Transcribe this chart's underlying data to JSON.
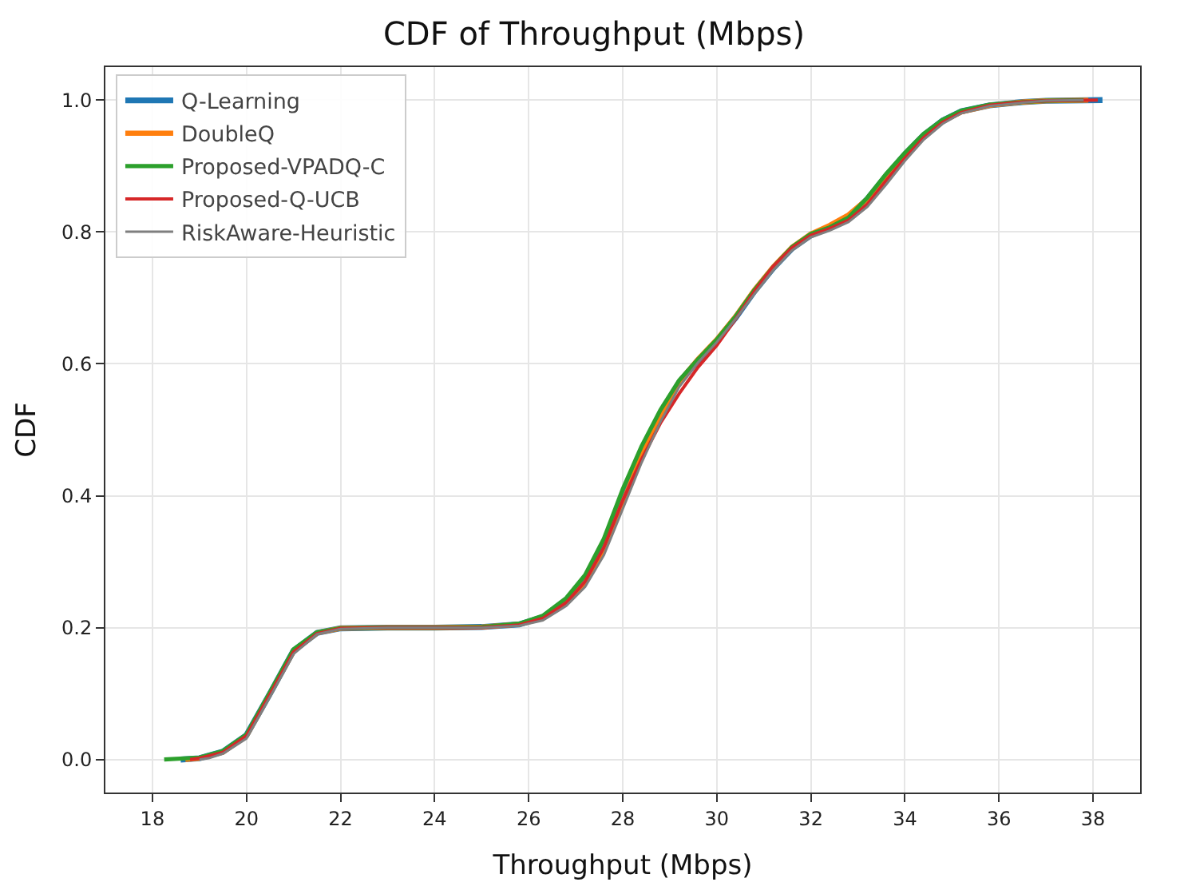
{
  "chart_data": {
    "type": "line",
    "title": "CDF of Throughput (Mbps)",
    "xlabel": "Throughput (Mbps)",
    "ylabel": "CDF",
    "xlim": [
      17.0,
      39.0
    ],
    "xticks": [
      18,
      20,
      22,
      24,
      26,
      28,
      30,
      32,
      34,
      36,
      38
    ],
    "ylim": [
      -0.05,
      1.05
    ],
    "yticks": [
      {
        "value": 0,
        "label": "0.0"
      },
      {
        "value": 0.2,
        "label": "0.2"
      },
      {
        "value": 0.4,
        "label": "0.4"
      },
      {
        "value": 0.6,
        "label": "0.6"
      },
      {
        "value": 0.8,
        "label": "0.8"
      },
      {
        "value": 1,
        "label": "1.0"
      }
    ],
    "grid": true,
    "legend": "top left",
    "marker": "none",
    "line_style": "solid",
    "series": [
      {
        "name": "Q-Learning",
        "color": "#1f77b4",
        "x": [
          18.6,
          19.0,
          19.5,
          20.0,
          20.5,
          21.0,
          21.5,
          22.0,
          23,
          24,
          25,
          25.8,
          26.3,
          26.8,
          27.2,
          27.6,
          28.0,
          28.4,
          28.8,
          29.2,
          29.6,
          30.0,
          30.4,
          30.8,
          31.2,
          31.6,
          32.0,
          32.4,
          32.8,
          33.2,
          33.6,
          34.0,
          34.4,
          34.8,
          35.2,
          35.8,
          36.5,
          37.0,
          38.2
        ],
        "values": [
          0,
          0.002,
          0.012,
          0.037,
          0.1,
          0.165,
          0.192,
          0.199,
          0.2,
          0.2,
          0.201,
          0.205,
          0.216,
          0.242,
          0.275,
          0.33,
          0.4,
          0.465,
          0.525,
          0.572,
          0.605,
          0.635,
          0.67,
          0.71,
          0.745,
          0.775,
          0.795,
          0.807,
          0.822,
          0.85,
          0.885,
          0.918,
          0.947,
          0.969,
          0.983,
          0.992,
          0.997,
          0.999,
          1
        ]
      },
      {
        "name": "DoubleQ",
        "color": "#ff7f0e",
        "x": [
          18.7,
          19.0,
          19.5,
          20.0,
          20.5,
          21.0,
          21.5,
          22.0,
          23,
          24,
          25,
          25.8,
          26.3,
          26.8,
          27.2,
          27.6,
          28.0,
          28.4,
          28.8,
          29.2,
          29.6,
          30.0,
          30.4,
          30.8,
          31.2,
          31.6,
          32.0,
          32.4,
          32.8,
          33.2,
          33.6,
          34.0,
          34.4,
          34.8,
          35.2,
          35.8,
          36.5,
          37.0,
          37.9
        ],
        "values": [
          0,
          0.002,
          0.011,
          0.036,
          0.1,
          0.164,
          0.192,
          0.199,
          0.2,
          0.2,
          0.201,
          0.205,
          0.214,
          0.238,
          0.268,
          0.318,
          0.39,
          0.46,
          0.522,
          0.573,
          0.607,
          0.637,
          0.672,
          0.712,
          0.747,
          0.777,
          0.797,
          0.81,
          0.826,
          0.85,
          0.882,
          0.916,
          0.946,
          0.968,
          0.982,
          0.992,
          0.997,
          0.999,
          1
        ]
      },
      {
        "name": "Proposed-VPADQ-C",
        "color": "#2ca02c",
        "x": [
          18.25,
          19.0,
          19.5,
          20.0,
          20.5,
          21.0,
          21.5,
          22.0,
          23,
          24,
          25,
          25.8,
          26.3,
          26.8,
          27.2,
          27.6,
          28.0,
          28.4,
          28.8,
          29.2,
          29.6,
          30.0,
          30.4,
          30.8,
          31.2,
          31.6,
          32.0,
          32.4,
          32.8,
          33.2,
          33.6,
          34.0,
          34.4,
          34.8,
          35.2,
          35.8,
          36.5,
          37.0,
          37.8
        ],
        "values": [
          0,
          0.003,
          0.013,
          0.038,
          0.102,
          0.167,
          0.193,
          0.199,
          0.2,
          0.2,
          0.201,
          0.206,
          0.218,
          0.245,
          0.28,
          0.335,
          0.41,
          0.475,
          0.53,
          0.575,
          0.607,
          0.637,
          0.672,
          0.712,
          0.747,
          0.777,
          0.797,
          0.807,
          0.822,
          0.852,
          0.888,
          0.92,
          0.949,
          0.97,
          0.984,
          0.993,
          0.997,
          0.999,
          1
        ]
      },
      {
        "name": "Proposed-Q-UCB",
        "color": "#d62728",
        "x": [
          18.8,
          19.0,
          19.5,
          20.0,
          20.5,
          21.0,
          21.5,
          22.0,
          23,
          24,
          25,
          25.8,
          26.3,
          26.8,
          27.2,
          27.6,
          28.0,
          28.4,
          28.8,
          29.2,
          29.6,
          30.0,
          30.4,
          30.8,
          31.2,
          31.6,
          32.0,
          32.4,
          32.8,
          33.2,
          33.6,
          34.0,
          34.4,
          34.8,
          35.2,
          35.8,
          36.5,
          37.0,
          38.1
        ],
        "values": [
          0,
          0.002,
          0.011,
          0.036,
          0.099,
          0.163,
          0.191,
          0.199,
          0.2,
          0.2,
          0.2,
          0.204,
          0.214,
          0.238,
          0.27,
          0.322,
          0.393,
          0.455,
          0.51,
          0.555,
          0.595,
          0.628,
          0.668,
          0.71,
          0.748,
          0.776,
          0.795,
          0.805,
          0.818,
          0.842,
          0.878,
          0.912,
          0.943,
          0.966,
          0.981,
          0.992,
          0.997,
          0.999,
          1
        ]
      },
      {
        "name": "RiskAware-Heuristic",
        "color": "#7f7f7f",
        "x": [
          19.0,
          19.2,
          19.5,
          20.0,
          20.5,
          21.0,
          21.5,
          22.0,
          23,
          24,
          25,
          25.8,
          26.3,
          26.8,
          27.2,
          27.6,
          28.0,
          28.4,
          28.8,
          29.2,
          29.6,
          30.0,
          30.4,
          30.8,
          31.2,
          31.6,
          32.0,
          32.4,
          32.8,
          33.2,
          33.6,
          34.0,
          34.4,
          34.8,
          35.2,
          35.8,
          36.5,
          37.0,
          37.8
        ],
        "values": [
          0,
          0.002,
          0.009,
          0.032,
          0.095,
          0.16,
          0.19,
          0.198,
          0.2,
          0.2,
          0.2,
          0.203,
          0.211,
          0.233,
          0.262,
          0.31,
          0.38,
          0.45,
          0.512,
          0.565,
          0.602,
          0.633,
          0.668,
          0.706,
          0.742,
          0.772,
          0.792,
          0.802,
          0.815,
          0.838,
          0.872,
          0.908,
          0.94,
          0.964,
          0.98,
          0.991,
          0.996,
          0.999,
          1
        ]
      }
    ]
  }
}
